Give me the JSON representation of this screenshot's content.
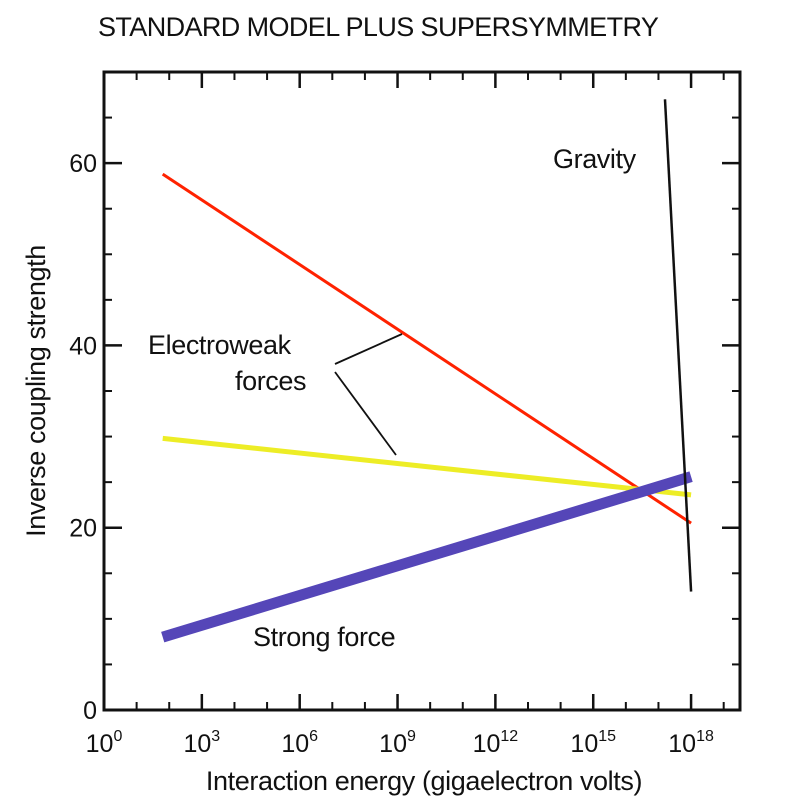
{
  "chart_data": {
    "type": "line",
    "title": "STANDARD MODEL PLUS SUPERSYMMETRY",
    "xlabel": "Interaction energy (gigaelectron volts)",
    "ylabel": "Inverse coupling strength",
    "x_scale": "log10",
    "xlim_exponent": [
      0,
      19.5
    ],
    "ylim": [
      0,
      70
    ],
    "x_ticks": [
      {
        "base": "10",
        "exp": "0",
        "value_exp": 0
      },
      {
        "base": "10",
        "exp": "3",
        "value_exp": 3
      },
      {
        "base": "10",
        "exp": "6",
        "value_exp": 6
      },
      {
        "base": "10",
        "exp": "9",
        "value_exp": 9
      },
      {
        "base": "10",
        "exp": "12",
        "value_exp": 12
      },
      {
        "base": "10",
        "exp": "15",
        "value_exp": 15
      },
      {
        "base": "10",
        "exp": "18",
        "value_exp": 18
      }
    ],
    "y_ticks": [
      "0",
      "20",
      "40",
      "60"
    ],
    "y_tick_values": [
      0,
      20,
      40,
      60
    ],
    "series": [
      {
        "key": "red-line",
        "color": "#ff2200",
        "stroke": 3,
        "points": [
          {
            "x_exp": 1.8,
            "y": 58.8
          },
          {
            "x_exp": 18.0,
            "y": 20.5
          }
        ]
      },
      {
        "key": "yellow-line",
        "color": "#eded26",
        "stroke": 5,
        "points": [
          {
            "x_exp": 1.8,
            "y": 29.8
          },
          {
            "x_exp": 18.0,
            "y": 23.6
          }
        ]
      },
      {
        "key": "blue-line",
        "color": "#5546b8",
        "stroke": 11,
        "points": [
          {
            "x_exp": 1.8,
            "y": 8.0
          },
          {
            "x_exp": 18.0,
            "y": 25.6
          }
        ]
      },
      {
        "key": "black-line",
        "color": "#111111",
        "stroke": 2.5,
        "points": [
          {
            "x_exp": 17.2,
            "y": 67.0
          },
          {
            "x_exp": 18.0,
            "y": 13.0
          }
        ]
      }
    ],
    "annotations": {
      "gravity": "Gravity",
      "electroweak_line1": "Electroweak",
      "electroweak_line2": "forces",
      "strong": "Strong force"
    },
    "grid": false,
    "legend": "none"
  }
}
